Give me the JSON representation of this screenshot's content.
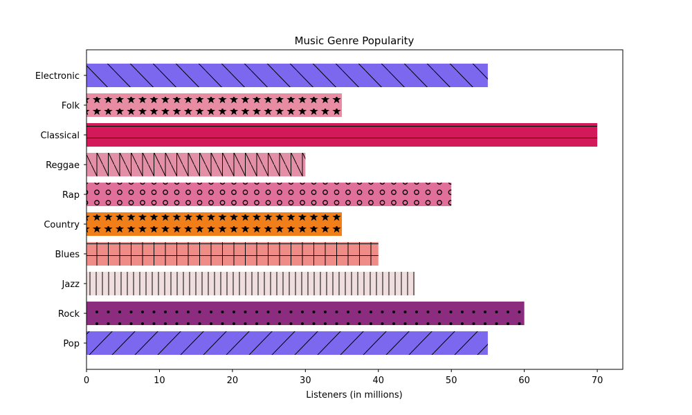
{
  "chart_data": {
    "type": "bar",
    "orientation": "horizontal",
    "title": "Music Genre Popularity",
    "xlabel": "Listeners (in millions)",
    "ylabel": "",
    "xlim": [
      0,
      73.5
    ],
    "xticks": [
      "0",
      "10",
      "20",
      "30",
      "40",
      "50",
      "60",
      "70"
    ],
    "grid": false,
    "bars": [
      {
        "category": "Pop",
        "value": 55,
        "color": "#7b68ee",
        "pattern": "slash"
      },
      {
        "category": "Rock",
        "value": 60,
        "color": "#8b2c7f",
        "pattern": "dots"
      },
      {
        "category": "Jazz",
        "value": 45,
        "color": "#f0dede",
        "pattern": "vertical"
      },
      {
        "category": "Blues",
        "value": 40,
        "color": "#f08c88",
        "pattern": "grid"
      },
      {
        "category": "Country",
        "value": 35,
        "color": "#f07f1a",
        "pattern": "stars"
      },
      {
        "category": "Rap",
        "value": 50,
        "color": "#e0709a",
        "pattern": "circles"
      },
      {
        "category": "Reggae",
        "value": 30,
        "color": "#e48fa8",
        "pattern": "vertical-backslash"
      },
      {
        "category": "Classical",
        "value": 70,
        "color": "#d4195a",
        "pattern": "horizontal"
      },
      {
        "category": "Folk",
        "value": 35,
        "color": "#e88ca4",
        "pattern": "stars"
      },
      {
        "category": "Electronic",
        "value": 55,
        "color": "#7b68ee",
        "pattern": "backslash"
      }
    ]
  }
}
